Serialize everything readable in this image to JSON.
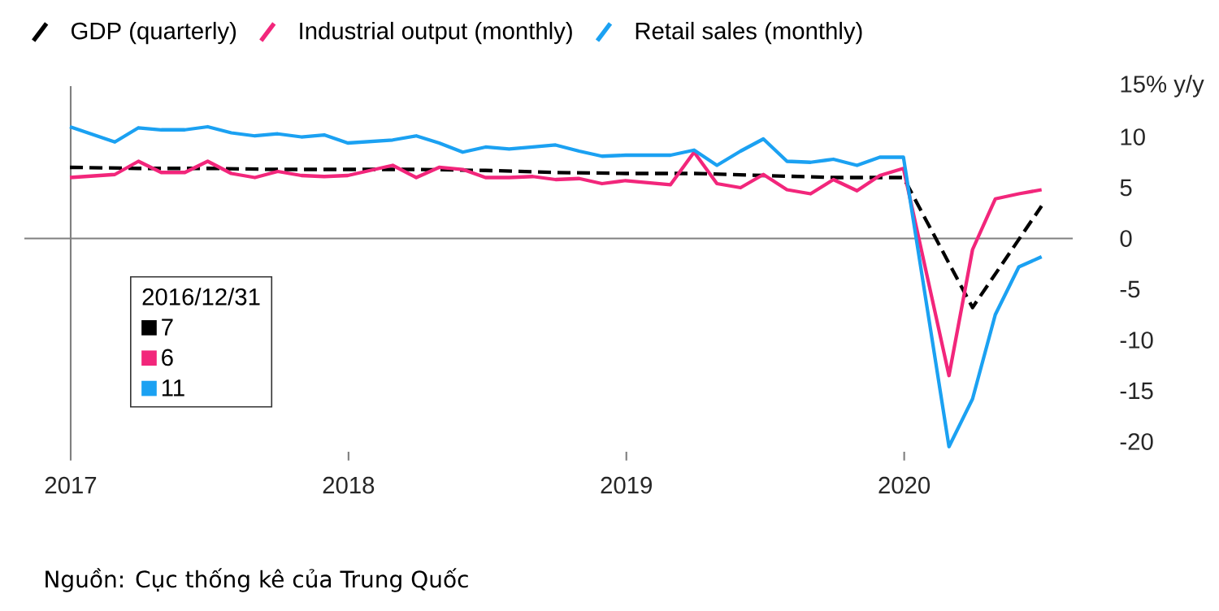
{
  "chart_data": {
    "type": "line",
    "xlim": [
      "2016-11-01",
      "2020-08-10"
    ],
    "ylim": [
      -21,
      15
    ],
    "xticks": [
      {
        "value": "2017-01-01",
        "label": "2017"
      },
      {
        "value": "2018-01-01",
        "label": "2018"
      },
      {
        "value": "2019-01-01",
        "label": "2019"
      },
      {
        "value": "2020-01-01",
        "label": "2020"
      }
    ],
    "yticks": [
      -20,
      -15,
      -10,
      -5,
      0,
      5,
      10,
      {
        "value": 15,
        "label": "15% y/y"
      }
    ],
    "legend": "top left",
    "ref_lines": [
      {
        "axis": "y",
        "value": 0,
        "color": "#808080"
      },
      {
        "axis": "x",
        "value": "2017-01-01",
        "color": "#808080"
      }
    ],
    "series": [
      {
        "name": "GDP (quarterly)",
        "color": "#000000",
        "line_style": "dashed",
        "x": [
          "2016-12-31",
          "2017-03-31",
          "2017-06-30",
          "2017-09-30",
          "2017-12-31",
          "2018-03-31",
          "2018-06-30",
          "2018-09-30",
          "2018-12-31",
          "2019-03-31",
          "2019-06-30",
          "2019-09-30",
          "2019-12-31",
          "2020-03-31",
          "2020-06-30"
        ],
        "values": [
          7,
          6.9,
          6.9,
          6.8,
          6.8,
          6.8,
          6.7,
          6.5,
          6.4,
          6.4,
          6.2,
          6.0,
          6.0,
          -6.8,
          3.2
        ]
      },
      {
        "name": "Industrial output (monthly)",
        "color": "#f2267b",
        "line_style": "solid",
        "x": [
          "2016-12-31",
          "2017-02-28",
          "2017-03-31",
          "2017-04-30",
          "2017-05-31",
          "2017-06-30",
          "2017-07-31",
          "2017-08-31",
          "2017-09-30",
          "2017-10-31",
          "2017-11-30",
          "2017-12-31",
          "2018-02-28",
          "2018-03-31",
          "2018-04-30",
          "2018-05-31",
          "2018-06-30",
          "2018-07-31",
          "2018-08-31",
          "2018-09-30",
          "2018-10-31",
          "2018-11-30",
          "2018-12-31",
          "2019-02-28",
          "2019-03-31",
          "2019-04-30",
          "2019-05-31",
          "2019-06-30",
          "2019-07-31",
          "2019-08-31",
          "2019-09-30",
          "2019-10-31",
          "2019-11-30",
          "2019-12-31",
          "2020-02-29",
          "2020-03-31",
          "2020-04-30",
          "2020-05-31",
          "2020-06-30"
        ],
        "values": [
          6,
          6.3,
          7.6,
          6.5,
          6.5,
          7.6,
          6.4,
          6.0,
          6.6,
          6.2,
          6.1,
          6.2,
          7.2,
          6.0,
          7.0,
          6.8,
          6.0,
          6.0,
          6.1,
          5.8,
          5.9,
          5.4,
          5.7,
          5.3,
          8.5,
          5.4,
          5.0,
          6.3,
          4.8,
          4.4,
          5.8,
          4.7,
          6.2,
          6.9,
          -13.5,
          -1.1,
          3.9,
          4.4,
          4.8
        ]
      },
      {
        "name": "Retail sales (monthly)",
        "color": "#1ba1f2",
        "line_style": "solid",
        "x": [
          "2016-12-31",
          "2017-02-28",
          "2017-03-31",
          "2017-04-30",
          "2017-05-31",
          "2017-06-30",
          "2017-07-31",
          "2017-08-31",
          "2017-09-30",
          "2017-10-31",
          "2017-11-30",
          "2017-12-31",
          "2018-02-28",
          "2018-03-31",
          "2018-04-30",
          "2018-05-31",
          "2018-06-30",
          "2018-07-31",
          "2018-08-31",
          "2018-09-30",
          "2018-10-31",
          "2018-11-30",
          "2018-12-31",
          "2019-02-28",
          "2019-03-31",
          "2019-04-30",
          "2019-05-31",
          "2019-06-30",
          "2019-07-31",
          "2019-08-31",
          "2019-09-30",
          "2019-10-31",
          "2019-11-30",
          "2019-12-31",
          "2020-02-29",
          "2020-03-31",
          "2020-04-30",
          "2020-05-31",
          "2020-06-30"
        ],
        "values": [
          11,
          9.5,
          10.9,
          10.7,
          10.7,
          11.0,
          10.4,
          10.1,
          10.3,
          10.0,
          10.2,
          9.4,
          9.7,
          10.1,
          9.4,
          8.5,
          9.0,
          8.8,
          9.0,
          9.2,
          8.6,
          8.1,
          8.2,
          8.2,
          8.7,
          7.2,
          8.6,
          9.8,
          7.6,
          7.5,
          7.8,
          7.2,
          8.0,
          8.0,
          -20.5,
          -15.8,
          -7.5,
          -2.8,
          -1.8
        ]
      }
    ],
    "annotations": [
      "2016/12/31",
      "7",
      "6",
      "11",
      "Nguồn: Cục thống kê của Trung Quốc"
    ]
  }
}
